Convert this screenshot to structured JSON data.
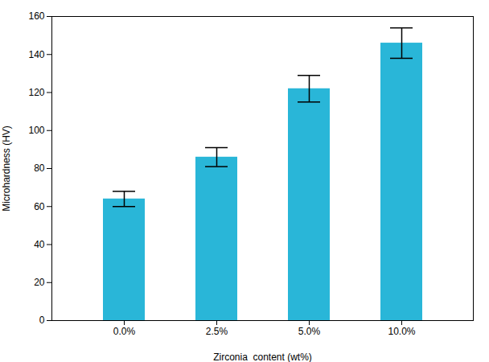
{
  "chart_data": {
    "type": "bar",
    "categories": [
      "0.0%",
      "2.5%",
      "5.0%",
      "10.0%"
    ],
    "values": [
      64,
      86,
      122,
      146
    ],
    "errors": [
      4,
      5,
      7,
      8
    ],
    "color": "#29b6d8",
    "xlabel": "Zirconia  content (wt%)",
    "ylabel": "Microhardness (HV)",
    "ylim": [
      0,
      160
    ],
    "yticks": [
      0,
      20,
      40,
      60,
      80,
      100,
      120,
      140,
      160
    ]
  }
}
